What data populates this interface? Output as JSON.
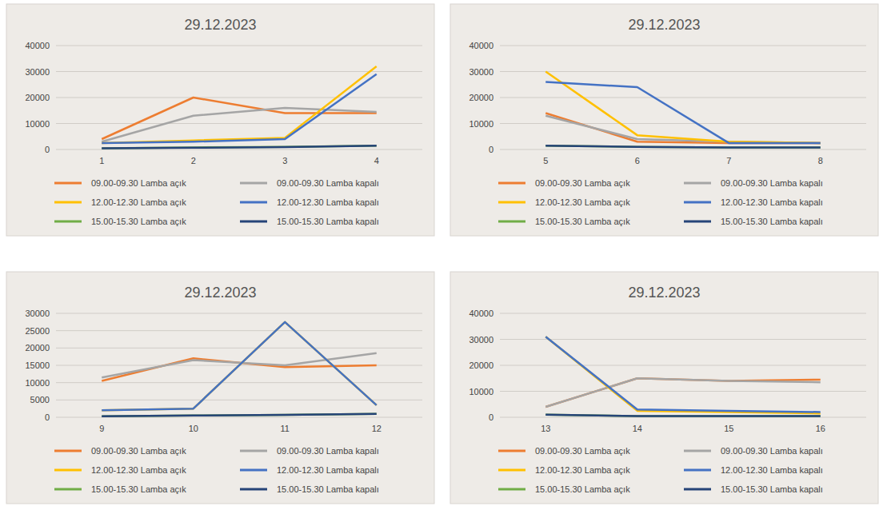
{
  "chart_data": [
    {
      "type": "line",
      "title": "29.12.2023",
      "categories": [
        "1",
        "2",
        "3",
        "4"
      ],
      "ylim": [
        0,
        40000
      ],
      "yticks": [
        0,
        10000,
        20000,
        30000,
        40000
      ],
      "grid": true,
      "legend": "bottom",
      "series": [
        {
          "name": "09.00-09.30 Lamba açık",
          "color": "#ed7d31",
          "values": [
            4000,
            20000,
            14000,
            14000
          ]
        },
        {
          "name": "09.00-09.30 Lamba kapalı",
          "color": "#a5a5a5",
          "values": [
            3000,
            13000,
            16000,
            14500
          ]
        },
        {
          "name": "12.00-12.30 Lamba açık",
          "color": "#ffc000",
          "values": [
            2500,
            3500,
            4500,
            32000
          ]
        },
        {
          "name": "12.00-12.30 Lamba kapalı",
          "color": "#4472c4",
          "values": [
            2500,
            3000,
            4000,
            29000
          ]
        },
        {
          "name": "15.00-15.30 Lamba açık",
          "color": "#70ad47",
          "values": [
            500,
            800,
            1000,
            1500
          ]
        },
        {
          "name": "15.00-15.30 Lamba kapalı",
          "color": "#264478",
          "values": [
            500,
            700,
            900,
            1500
          ]
        }
      ]
    },
    {
      "type": "line",
      "title": "29.12.2023",
      "categories": [
        "5",
        "6",
        "7",
        "8"
      ],
      "ylim": [
        0,
        40000
      ],
      "yticks": [
        0,
        10000,
        20000,
        30000,
        40000
      ],
      "grid": true,
      "legend": "bottom",
      "series": [
        {
          "name": "09.00-09.30 Lamba açık",
          "color": "#ed7d31",
          "values": [
            14000,
            3000,
            2500,
            2500
          ]
        },
        {
          "name": "09.00-09.30 Lamba kapalı",
          "color": "#a5a5a5",
          "values": [
            13000,
            4000,
            3000,
            2500
          ]
        },
        {
          "name": "12.00-12.30 Lamba açık",
          "color": "#ffc000",
          "values": [
            30000,
            5500,
            3000,
            2500
          ]
        },
        {
          "name": "12.00-12.30 Lamba kapalı",
          "color": "#4472c4",
          "values": [
            26000,
            24000,
            2500,
            2500
          ]
        },
        {
          "name": "15.00-15.30 Lamba açık",
          "color": "#70ad47",
          "values": [
            1500,
            1000,
            800,
            800
          ]
        },
        {
          "name": "15.00-15.30 Lamba kapalı",
          "color": "#264478",
          "values": [
            1500,
            1000,
            800,
            800
          ]
        }
      ]
    },
    {
      "type": "line",
      "title": "29.12.2023",
      "categories": [
        "9",
        "10",
        "11",
        "12"
      ],
      "ylim": [
        0,
        30000
      ],
      "yticks": [
        0,
        5000,
        10000,
        15000,
        20000,
        25000,
        30000
      ],
      "grid": true,
      "legend": "bottom",
      "series": [
        {
          "name": "09.00-09.30 Lamba açık",
          "color": "#ed7d31",
          "values": [
            10500,
            17000,
            14500,
            15000
          ]
        },
        {
          "name": "09.00-09.30 Lamba kapalı",
          "color": "#a5a5a5",
          "values": [
            11500,
            16500,
            15000,
            18500
          ]
        },
        {
          "name": "12.00-12.30 Lamba açık",
          "color": "#ffc000",
          "values": [
            2000,
            2500,
            27500,
            3500
          ]
        },
        {
          "name": "12.00-12.30 Lamba kapalı",
          "color": "#4472c4",
          "values": [
            2000,
            2500,
            27500,
            3500
          ]
        },
        {
          "name": "15.00-15.30 Lamba açık",
          "color": "#70ad47",
          "values": [
            300,
            500,
            700,
            1000
          ]
        },
        {
          "name": "15.00-15.30 Lamba kapalı",
          "color": "#264478",
          "values": [
            300,
            500,
            700,
            1000
          ]
        }
      ]
    },
    {
      "type": "line",
      "title": "29.12.2023",
      "categories": [
        "13",
        "14",
        "15",
        "16"
      ],
      "ylim": [
        0,
        40000
      ],
      "yticks": [
        0,
        10000,
        20000,
        30000,
        40000
      ],
      "grid": true,
      "legend": "bottom",
      "series": [
        {
          "name": "09.00-09.30 Lamba açık",
          "color": "#ed7d31",
          "values": [
            4000,
            15000,
            14000,
            14500
          ]
        },
        {
          "name": "09.00-09.30 Lamba kapalı",
          "color": "#a5a5a5",
          "values": [
            4000,
            15000,
            14000,
            13500
          ]
        },
        {
          "name": "12.00-12.30 Lamba açık",
          "color": "#ffc000",
          "values": [
            31000,
            2500,
            2000,
            1500
          ]
        },
        {
          "name": "12.00-12.30 Lamba kapalı",
          "color": "#4472c4",
          "values": [
            31000,
            3000,
            2500,
            2000
          ]
        },
        {
          "name": "15.00-15.30 Lamba açık",
          "color": "#70ad47",
          "values": [
            1000,
            500,
            500,
            500
          ]
        },
        {
          "name": "15.00-15.30 Lamba kapalı",
          "color": "#264478",
          "values": [
            1000,
            500,
            500,
            500
          ]
        }
      ]
    }
  ]
}
